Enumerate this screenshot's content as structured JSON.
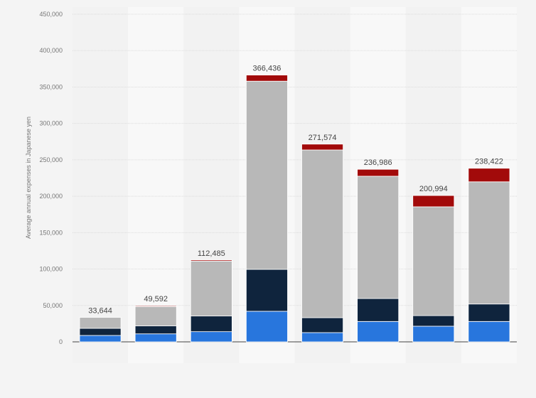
{
  "chart_data": {
    "type": "bar",
    "stacked": true,
    "title": "",
    "xlabel": "",
    "ylabel": "Average annual expenses in Japanese yen",
    "ylim": [
      0,
      450000
    ],
    "yticks": [
      0,
      50000,
      100000,
      150000,
      200000,
      250000,
      300000,
      350000,
      400000,
      450000
    ],
    "ytick_labels": [
      "0",
      "50,000",
      "100,000",
      "150,000",
      "200,000",
      "250,000",
      "300,000",
      "350,000",
      "400,000",
      "450,000"
    ],
    "grid": true,
    "legend": "none",
    "categories": [
      "",
      "",
      "",
      "",
      "",
      "",
      "",
      ""
    ],
    "series": [
      {
        "color": "#2876dd",
        "values": [
          8800,
          11000,
          14000,
          42000,
          12700,
          28000,
          21500,
          28000
        ]
      },
      {
        "color": "#0f243d",
        "values": [
          9800,
          11000,
          21500,
          57600,
          20500,
          31500,
          14500,
          24000
        ]
      },
      {
        "color": "#b8b8b8",
        "values": [
          15044,
          26500,
          75485,
          258436,
          230374,
          168000,
          149494,
          167822
        ]
      },
      {
        "color": "#a20a0a",
        "values": [
          0,
          1092,
          1500,
          8400,
          8000,
          9486,
          15500,
          18600
        ]
      }
    ],
    "totals": [
      33644,
      49592,
      112485,
      366436,
      271574,
      236986,
      200994,
      238422
    ],
    "total_labels": [
      "33,644",
      "49,592",
      "112,485",
      "366,436",
      "271,574",
      "236,986",
      "200,994",
      "238,422"
    ]
  }
}
